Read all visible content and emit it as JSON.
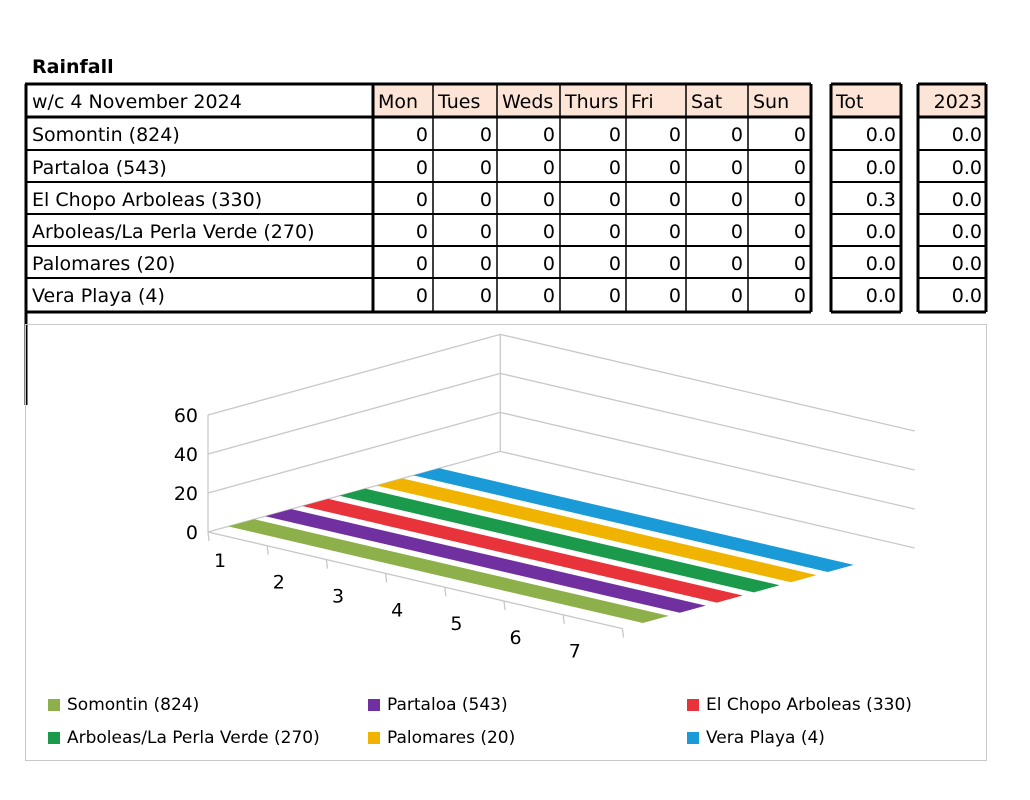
{
  "title": "Rainfall",
  "table": {
    "week_label": "w/c 4 November 2024",
    "days": [
      "Mon",
      "Tues",
      "Weds",
      "Thurs",
      "Fri",
      "Sat",
      "Sun"
    ],
    "tot_header": "Tot",
    "year_header": "2023",
    "rows": [
      {
        "name": "Somontin (824)",
        "values": [
          "0",
          "0",
          "0",
          "0",
          "0",
          "0",
          "0"
        ],
        "tot": "0.0",
        "prev": "0.0"
      },
      {
        "name": "Partaloa (543)",
        "values": [
          "0",
          "0",
          "0",
          "0",
          "0",
          "0",
          "0"
        ],
        "tot": "0.0",
        "prev": "0.0"
      },
      {
        "name": "El Chopo Arboleas (330)",
        "values": [
          "0",
          "0",
          "0",
          "0",
          "0",
          "0",
          "0"
        ],
        "tot": "0.3",
        "prev": "0.0"
      },
      {
        "name": "Arboleas/La Perla Verde (270)",
        "values": [
          "0",
          "0",
          "0",
          "0",
          "0",
          "0",
          "0"
        ],
        "tot": "0.0",
        "prev": "0.0"
      },
      {
        "name": "Palomares (20)",
        "values": [
          "0",
          "0",
          "0",
          "0",
          "0",
          "0",
          "0"
        ],
        "tot": "0.0",
        "prev": "0.0"
      },
      {
        "name": "Vera Playa (4)",
        "values": [
          "0",
          "0",
          "0",
          "0",
          "0",
          "0",
          "0"
        ],
        "tot": "0.0",
        "prev": "0.0"
      }
    ]
  },
  "colors": {
    "header_fill": "#fce4d6",
    "series": [
      "#8db04a",
      "#7030a0",
      "#e8333a",
      "#1a9a4a",
      "#f0b400",
      "#1a9ad6"
    ]
  },
  "chart_data": {
    "type": "bar",
    "subtype": "3d-ribbon",
    "x": [
      "1",
      "2",
      "3",
      "4",
      "5",
      "6",
      "7"
    ],
    "y_ticks": [
      "0",
      "20",
      "40",
      "60"
    ],
    "ylim": [
      0,
      60
    ],
    "legend_position": "bottom",
    "series": [
      {
        "name": "Somontin (824)",
        "values": [
          0,
          0,
          0,
          0,
          0,
          0,
          0
        ]
      },
      {
        "name": "Partaloa (543)",
        "values": [
          0,
          0,
          0,
          0,
          0,
          0,
          0
        ]
      },
      {
        "name": "El Chopo Arboleas (330)",
        "values": [
          0,
          0,
          0,
          0,
          0,
          0,
          0
        ]
      },
      {
        "name": "Arboleas/La Perla Verde (270)",
        "values": [
          0,
          0,
          0,
          0,
          0,
          0,
          0
        ]
      },
      {
        "name": "Palomares (20)",
        "values": [
          0,
          0,
          0,
          0,
          0,
          0,
          0
        ]
      },
      {
        "name": "Vera Playa (4)",
        "values": [
          0,
          0,
          0,
          0,
          0,
          0,
          0
        ]
      }
    ]
  }
}
